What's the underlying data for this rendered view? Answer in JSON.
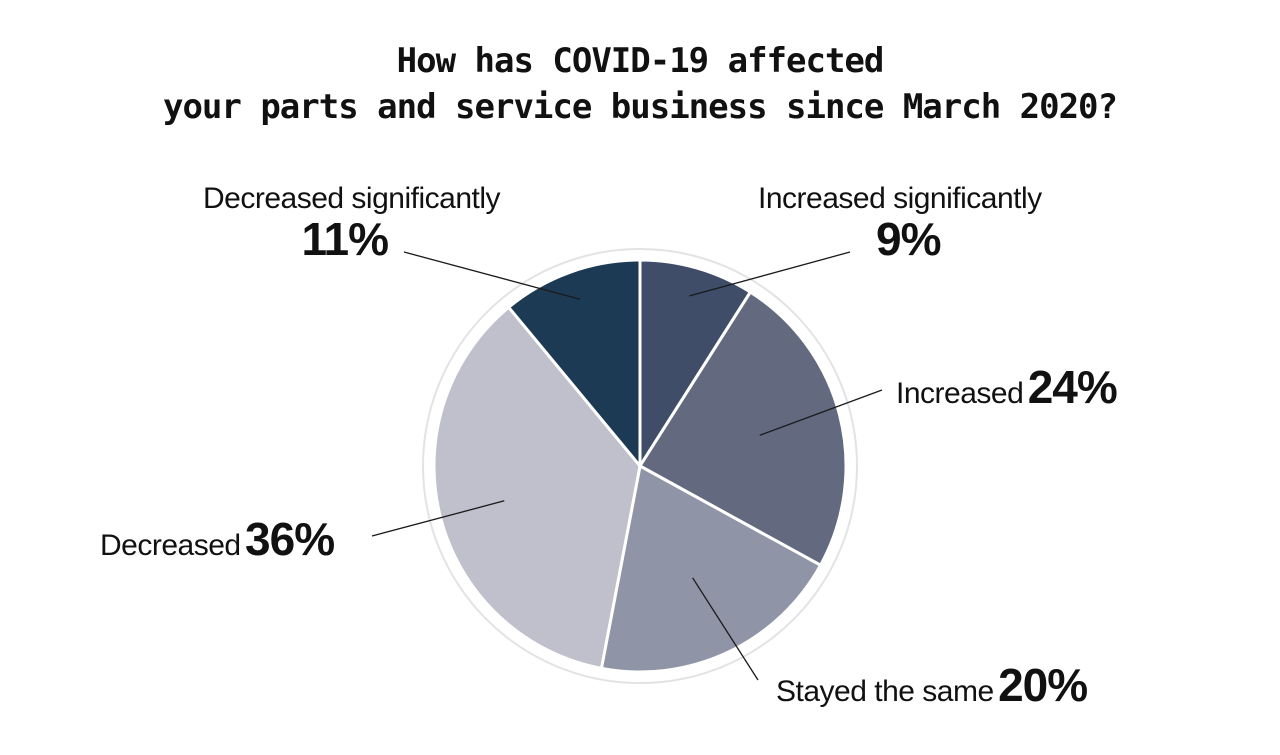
{
  "chart_data": {
    "type": "pie",
    "title_lines": [
      "How has COVID-19 affected",
      "your parts and service business since March 2020?"
    ],
    "start_angle_deg": 0,
    "direction": "clockwise",
    "slices": [
      {
        "label": "Increased significantly",
        "value": 9,
        "display": "9%",
        "color": "#3f4d68"
      },
      {
        "label": "Increased",
        "value": 24,
        "display": "24%",
        "color": "#636a80"
      },
      {
        "label": "Stayed the same",
        "value": 20,
        "display": "20%",
        "color": "#9094a7"
      },
      {
        "label": "Decreased",
        "value": 36,
        "display": "36%",
        "color": "#bfc0cb"
      },
      {
        "label": "Decreased significantly",
        "value": 11,
        "display": "11%",
        "color": "#1d3a55"
      }
    ]
  }
}
